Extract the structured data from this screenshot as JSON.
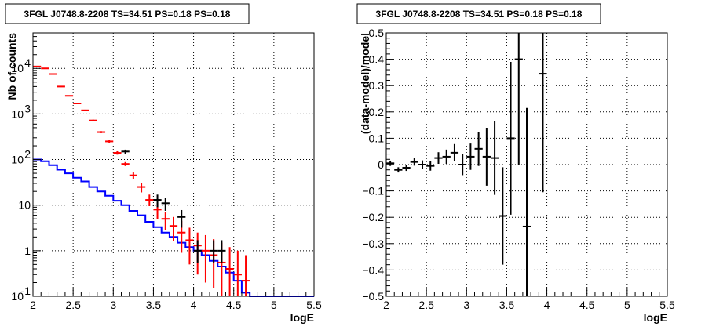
{
  "chart_data": [
    {
      "type": "line",
      "title": "3FGL J0748.8-2208 TS=34.51 PS=0.18 PS=0.18",
      "xlabel": "logE",
      "ylabel": "Nb of counts",
      "xlim": [
        2,
        5.5
      ],
      "ylim": [
        0.1,
        60000
      ],
      "yscale": "log",
      "grid": true,
      "x_ticks": [
        "2",
        "2.5",
        "3",
        "3.5",
        "4",
        "4.5",
        "5",
        "5.5"
      ],
      "y_ticks": [
        {
          "value": 0.1,
          "label": "10",
          "sup": "-1"
        },
        {
          "value": 1,
          "label": "1",
          "sup": ""
        },
        {
          "value": 10,
          "label": "10",
          "sup": ""
        },
        {
          "value": 100,
          "label": "10",
          "sup": "2"
        },
        {
          "value": 1000,
          "label": "10",
          "sup": "3"
        },
        {
          "value": 10000,
          "label": "10",
          "sup": "4"
        }
      ],
      "series": [
        {
          "kind": "step",
          "color": "#0000ff",
          "bin_edges": [
            2.0,
            2.1,
            2.2,
            2.3,
            2.4,
            2.5,
            2.6,
            2.7,
            2.8,
            2.9,
            3.0,
            3.1,
            3.2,
            3.3,
            3.4,
            3.5,
            3.6,
            3.7,
            3.8,
            3.9,
            4.0,
            4.1,
            4.2,
            4.3,
            4.4,
            4.5,
            4.6,
            4.7,
            4.8,
            4.9,
            5.0,
            5.1,
            5.2,
            5.3,
            5.4,
            5.5
          ],
          "values": [
            100,
            92,
            75,
            60,
            50,
            40,
            33,
            25,
            20,
            16,
            12.5,
            10,
            7.5,
            6.0,
            4.3,
            3.3,
            2.5,
            2.0,
            1.5,
            1.2,
            1.0,
            0.8,
            0.6,
            0.45,
            0.33,
            0.22,
            0.12,
            0.1,
            0.1,
            0.1,
            0.1,
            0.1,
            0.1,
            0.1,
            0.1
          ]
        },
        {
          "kind": "errorbar",
          "color": "#ff0000",
          "x": [
            2.05,
            2.15,
            2.25,
            2.35,
            2.45,
            2.55,
            2.65,
            2.75,
            2.85,
            2.95,
            3.05,
            3.15,
            3.25,
            3.35,
            3.45,
            3.55,
            3.65,
            3.75,
            3.85,
            3.95,
            4.05,
            4.15,
            4.25,
            4.35,
            4.45,
            4.55,
            4.65
          ],
          "y": [
            11000,
            10000,
            7500,
            4000,
            2500,
            1700,
            1200,
            720,
            400,
            250,
            140,
            80,
            45,
            25,
            13,
            8,
            5,
            3.5,
            2.5,
            1.7,
            1.3,
            1.0,
            0.8,
            0.55,
            0.4,
            0.3,
            0.22
          ],
          "y_low": [
            10800,
            9800,
            7350,
            3900,
            2450,
            1650,
            1160,
            690,
            380,
            235,
            128,
            72,
            38,
            19,
            9.5,
            5.0,
            2.8,
            1.6,
            0.9,
            0.5,
            0.3,
            0.2,
            0.15,
            0.1,
            0.1,
            0.1,
            0.1
          ],
          "y_high": [
            11200,
            10200,
            7650,
            4100,
            2550,
            1750,
            1240,
            750,
            420,
            265,
            152,
            88,
            52,
            31,
            17,
            11,
            7,
            5.5,
            4.5,
            3.2,
            2.5,
            2.2,
            1.8,
            1.5,
            1.2,
            1.0,
            0.8
          ]
        },
        {
          "kind": "errorbar",
          "color": "#000000",
          "x": [
            3.15,
            3.55,
            3.65,
            3.85,
            4.05,
            4.25,
            4.35
          ],
          "y": [
            150,
            13,
            11,
            5.5,
            1.0,
            1.0,
            1.0
          ],
          "y_low": [
            135,
            9,
            7.5,
            3.2,
            0.55,
            0.55,
            0.55
          ],
          "y_high": [
            165,
            17,
            14.5,
            7.8,
            1.7,
            1.7,
            1.7
          ]
        }
      ]
    },
    {
      "type": "scatter",
      "title": "3FGL J0748.8-2208 TS=34.51 PS=0.18 PS=0.18",
      "xlabel": "logE",
      "ylabel": "(data-model)/model",
      "xlim": [
        2,
        5.5
      ],
      "ylim": [
        -0.5,
        0.5
      ],
      "grid": true,
      "x_ticks": [
        "2",
        "2.5",
        "3",
        "3.5",
        "4",
        "4.5",
        "5",
        "5.5"
      ],
      "y_ticks": [
        "−0.5",
        "−0.4",
        "−0.3",
        "−0.2",
        "−0.1",
        "0",
        "0.1",
        "0.2",
        "0.3",
        "0.4",
        "0.5"
      ],
      "series": [
        {
          "kind": "errorbar",
          "color": "#000000",
          "x": [
            2.05,
            2.15,
            2.25,
            2.35,
            2.45,
            2.55,
            2.65,
            2.75,
            2.85,
            2.95,
            3.05,
            3.15,
            3.25,
            3.35,
            3.45,
            3.55,
            3.65,
            3.75,
            3.95
          ],
          "y": [
            0.005,
            -0.02,
            -0.012,
            0.01,
            0.0,
            -0.005,
            0.025,
            0.03,
            0.045,
            0.0,
            0.03,
            0.06,
            0.03,
            0.025,
            -0.195,
            0.1,
            0.4,
            -0.235,
            0.345
          ],
          "y_err": [
            0.01,
            0.01,
            0.012,
            0.014,
            0.016,
            0.018,
            0.022,
            0.027,
            0.033,
            0.04,
            0.05,
            0.065,
            0.11,
            0.14,
            0.185,
            0.29,
            0.4,
            0.45,
            0.45
          ]
        }
      ]
    }
  ]
}
